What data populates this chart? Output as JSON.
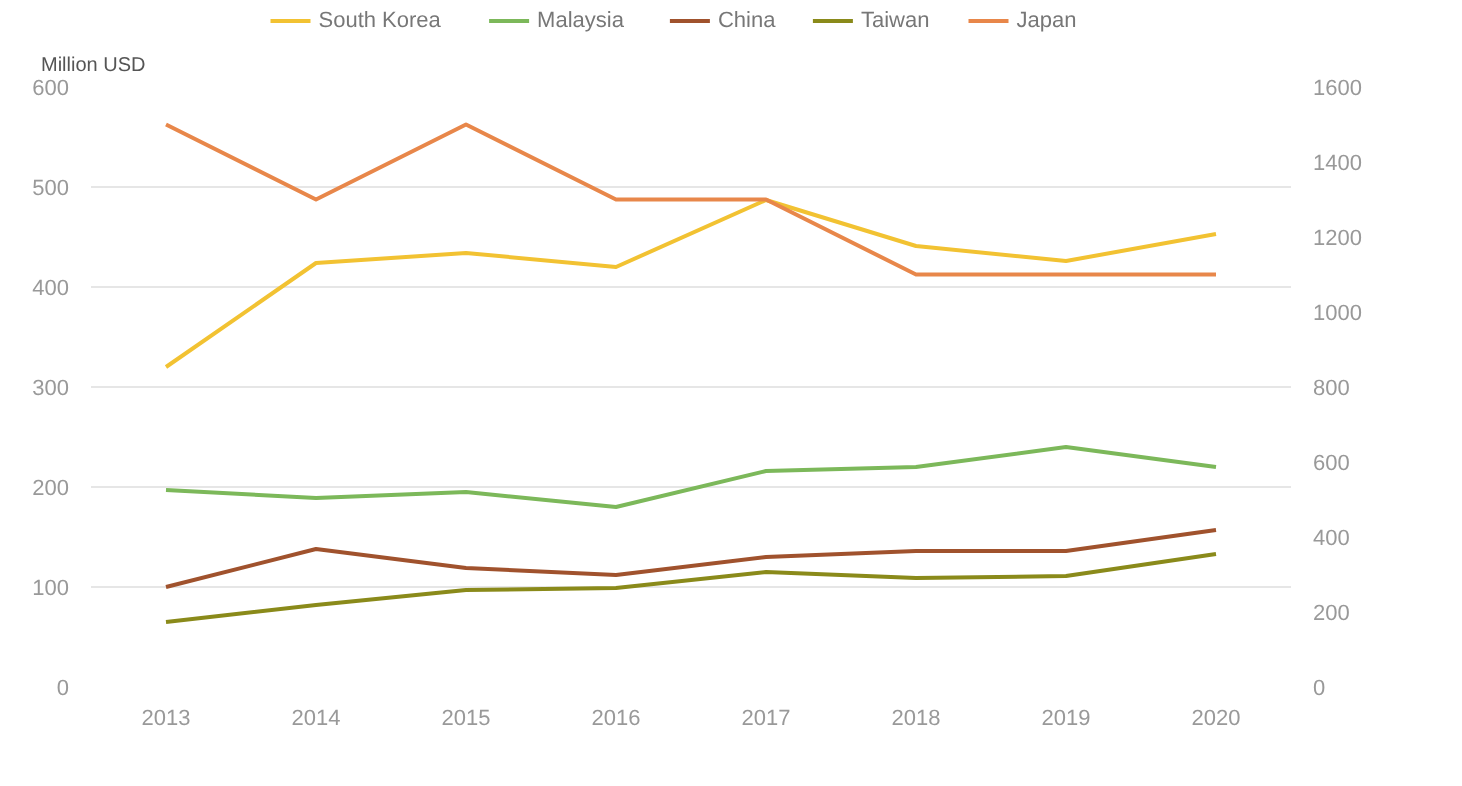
{
  "chart_data": {
    "type": "line",
    "ylabel": "Million USD",
    "x": [
      2013,
      2014,
      2015,
      2016,
      2017,
      2018,
      2019,
      2020
    ],
    "xlim": [
      2012.5,
      2020.5
    ],
    "xticks": [
      2013,
      2014,
      2015,
      2016,
      2017,
      2018,
      2019,
      2020
    ],
    "ylim": [
      0,
      600
    ],
    "yticks": [
      0,
      100,
      200,
      300,
      400,
      500,
      600
    ],
    "y2lim": [
      0,
      1600
    ],
    "y2ticks": [
      0,
      200,
      400,
      600,
      800,
      1000,
      1200,
      1400,
      1600
    ],
    "grid": "y",
    "legend": "top",
    "marker": "none",
    "line_style": "solid",
    "series": [
      {
        "name": "South Korea",
        "color": "#f2c232",
        "values": [
          320,
          424,
          434,
          420,
          487,
          441,
          426,
          453
        ]
      },
      {
        "name": "Malaysia",
        "color": "#7cb85a",
        "values": [
          197,
          189,
          195,
          180,
          216,
          220,
          240,
          220
        ]
      },
      {
        "name": "China",
        "color": "#a0522d",
        "values": [
          100,
          138,
          119,
          112,
          130,
          136,
          136,
          157
        ]
      },
      {
        "name": "Taiwan",
        "color": "#8a8a1a",
        "values": [
          65,
          82,
          97,
          99,
          115,
          109,
          111,
          133
        ]
      },
      {
        "name": "Japan",
        "color": "#e8874a",
        "axis": "y2",
        "values": [
          1500,
          1300,
          1500,
          1300,
          1300,
          1100,
          1100,
          1100
        ]
      }
    ]
  }
}
